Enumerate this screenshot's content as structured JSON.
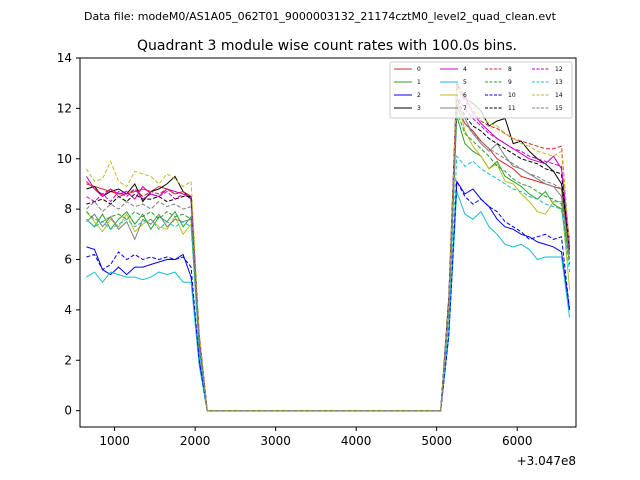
{
  "chart_data": {
    "type": "line",
    "suptitle": "Data file: modeM0/AS1A05_062T01_9000003132_21174cztM0_level2_quad_clean.evt",
    "title": "Quadrant 3 module wise count rates with 100.0s bins.",
    "xlabel": "",
    "ylabel": "",
    "offset_text": "+3.047e8",
    "xlim": [
      570,
      6730
    ],
    "ylim": [
      -0.65,
      14
    ],
    "xticks": [
      1000,
      2000,
      3000,
      4000,
      5000,
      6000
    ],
    "xtick_labels": [
      "1000",
      "2000",
      "3000",
      "4000",
      "5000",
      "6000"
    ],
    "yticks": [
      0,
      2,
      4,
      6,
      8,
      10,
      12,
      14
    ],
    "ytick_labels": [
      "0",
      "2",
      "4",
      "6",
      "8",
      "10",
      "12",
      "14"
    ],
    "legend_position": "top-right",
    "x": [
      650,
      750,
      850,
      950,
      1050,
      1150,
      1250,
      1350,
      1450,
      1550,
      1650,
      1750,
      1850,
      1950,
      2050,
      2150,
      2250,
      2350,
      2450,
      2550,
      2650,
      2750,
      2850,
      2950,
      3050,
      3150,
      3250,
      3350,
      3450,
      3550,
      3650,
      3750,
      3850,
      3950,
      4050,
      4150,
      4250,
      4350,
      4450,
      4550,
      4650,
      4750,
      4850,
      4950,
      5050,
      5150,
      5250,
      5350,
      5450,
      5550,
      5650,
      5750,
      5850,
      5950,
      6050,
      6150,
      6250,
      6350,
      6450,
      6550,
      6650
    ],
    "series": [
      {
        "name": "0",
        "color": "#d62728",
        "dash": "solid",
        "values": [
          9.0,
          8.9,
          8.8,
          8.7,
          8.6,
          8.6,
          8.7,
          8.8,
          8.7,
          8.9,
          8.8,
          8.6,
          8.7,
          8.5,
          3.0,
          0.0,
          0.0,
          0.0,
          0.0,
          0.0,
          0.0,
          0.0,
          0.0,
          0.0,
          0.0,
          0.0,
          0.0,
          0.0,
          0.0,
          0.0,
          0.0,
          0.0,
          0.0,
          0.0,
          0.0,
          0.0,
          0.0,
          0.0,
          0.0,
          0.0,
          0.0,
          0.0,
          0.0,
          0.0,
          0.0,
          4.0,
          12.1,
          11.4,
          11.1,
          10.7,
          10.4,
          10.0,
          9.8,
          9.6,
          9.3,
          9.2,
          9.1,
          9.0,
          8.9,
          8.8,
          6.2
        ]
      },
      {
        "name": "1",
        "color": "#2ca02c",
        "dash": "solid",
        "values": [
          7.6,
          7.3,
          7.8,
          7.2,
          7.6,
          7.9,
          7.4,
          7.8,
          7.2,
          7.7,
          7.5,
          7.9,
          7.3,
          7.7,
          2.5,
          0.0,
          0.0,
          0.0,
          0.0,
          0.0,
          0.0,
          0.0,
          0.0,
          0.0,
          0.0,
          0.0,
          0.0,
          0.0,
          0.0,
          0.0,
          0.0,
          0.0,
          0.0,
          0.0,
          0.0,
          0.0,
          0.0,
          0.0,
          0.0,
          0.0,
          0.0,
          0.0,
          0.0,
          0.0,
          0.0,
          4.0,
          11.7,
          10.6,
          10.3,
          10.1,
          9.6,
          9.9,
          9.3,
          9.1,
          8.9,
          8.6,
          8.4,
          8.7,
          8.2,
          8.0,
          6.0
        ]
      },
      {
        "name": "2",
        "color": "#0000ff",
        "dash": "solid",
        "values": [
          6.5,
          6.4,
          5.6,
          5.4,
          5.7,
          5.4,
          5.7,
          5.7,
          5.8,
          5.9,
          6.0,
          6.0,
          6.2,
          5.3,
          2.0,
          0.0,
          0.0,
          0.0,
          0.0,
          0.0,
          0.0,
          0.0,
          0.0,
          0.0,
          0.0,
          0.0,
          0.0,
          0.0,
          0.0,
          0.0,
          0.0,
          0.0,
          0.0,
          0.0,
          0.0,
          0.0,
          0.0,
          0.0,
          0.0,
          0.0,
          0.0,
          0.0,
          0.0,
          0.0,
          0.0,
          3.0,
          9.1,
          8.6,
          8.8,
          8.4,
          8.1,
          7.6,
          7.3,
          7.2,
          7.0,
          6.9,
          6.7,
          6.6,
          6.5,
          6.3,
          4.0
        ]
      },
      {
        "name": "3",
        "color": "#000000",
        "dash": "solid",
        "values": [
          8.8,
          8.9,
          8.5,
          8.7,
          8.8,
          8.6,
          9.0,
          8.3,
          8.7,
          8.8,
          9.0,
          9.3,
          8.7,
          8.4,
          3.0,
          0.0,
          0.0,
          0.0,
          0.0,
          0.0,
          0.0,
          0.0,
          0.0,
          0.0,
          0.0,
          0.0,
          0.0,
          0.0,
          0.0,
          0.0,
          0.0,
          0.0,
          0.0,
          0.0,
          0.0,
          0.0,
          0.0,
          0.0,
          0.0,
          0.0,
          0.0,
          0.0,
          0.0,
          0.0,
          0.0,
          4.5,
          13.0,
          12.4,
          12.2,
          11.9,
          11.3,
          11.5,
          11.6,
          10.6,
          10.7,
          10.3,
          10.0,
          9.8,
          9.5,
          9.0,
          6.5
        ]
      },
      {
        "name": "4",
        "color": "#cc00cc",
        "dash": "solid",
        "values": [
          9.3,
          8.8,
          8.5,
          8.8,
          8.6,
          8.7,
          8.4,
          8.9,
          8.6,
          8.5,
          8.8,
          8.7,
          8.6,
          8.5,
          3.0,
          0.0,
          0.0,
          0.0,
          0.0,
          0.0,
          0.0,
          0.0,
          0.0,
          0.0,
          0.0,
          0.0,
          0.0,
          0.0,
          0.0,
          0.0,
          0.0,
          0.0,
          0.0,
          0.0,
          0.0,
          0.0,
          0.0,
          0.0,
          0.0,
          0.0,
          0.0,
          0.0,
          0.0,
          0.0,
          0.0,
          4.2,
          12.9,
          12.5,
          11.8,
          11.4,
          11.1,
          10.8,
          10.6,
          10.4,
          10.2,
          10.0,
          9.9,
          9.8,
          10.1,
          9.6,
          6.7
        ]
      },
      {
        "name": "5",
        "color": "#17becf",
        "dash": "solid",
        "values": [
          5.3,
          5.5,
          5.1,
          5.5,
          5.4,
          5.3,
          5.3,
          5.2,
          5.3,
          5.5,
          5.4,
          5.5,
          5.1,
          5.1,
          1.8,
          0.0,
          0.0,
          0.0,
          0.0,
          0.0,
          0.0,
          0.0,
          0.0,
          0.0,
          0.0,
          0.0,
          0.0,
          0.0,
          0.0,
          0.0,
          0.0,
          0.0,
          0.0,
          0.0,
          0.0,
          0.0,
          0.0,
          0.0,
          0.0,
          0.0,
          0.0,
          0.0,
          0.0,
          0.0,
          0.0,
          3.0,
          8.7,
          7.8,
          7.6,
          7.9,
          7.3,
          7.0,
          6.6,
          6.5,
          6.6,
          6.4,
          6.0,
          6.1,
          6.1,
          6.1,
          3.7
        ]
      },
      {
        "name": "6",
        "color": "#bcbd22",
        "dash": "solid",
        "values": [
          7.9,
          7.5,
          7.1,
          7.6,
          7.3,
          7.8,
          7.1,
          7.4,
          7.6,
          7.3,
          7.2,
          7.7,
          7.0,
          7.4,
          2.5,
          0.0,
          0.0,
          0.0,
          0.0,
          0.0,
          0.0,
          0.0,
          0.0,
          0.0,
          0.0,
          0.0,
          0.0,
          0.0,
          0.0,
          0.0,
          0.0,
          0.0,
          0.0,
          0.0,
          0.0,
          0.0,
          0.0,
          0.0,
          0.0,
          0.0,
          0.0,
          0.0,
          0.0,
          0.0,
          0.0,
          4.0,
          12.5,
          11.1,
          10.5,
          10.1,
          9.6,
          9.8,
          9.1,
          9.0,
          8.6,
          8.3,
          7.9,
          7.8,
          8.3,
          8.3,
          4.8
        ]
      },
      {
        "name": "7",
        "color": "#7f7f7f",
        "dash": "solid",
        "values": [
          7.5,
          7.8,
          7.3,
          7.7,
          7.2,
          7.5,
          6.8,
          7.6,
          7.4,
          7.8,
          7.3,
          7.6,
          7.5,
          7.6,
          2.5,
          0.0,
          0.0,
          0.0,
          0.0,
          0.0,
          0.0,
          0.0,
          0.0,
          0.0,
          0.0,
          0.0,
          0.0,
          0.0,
          0.0,
          0.0,
          0.0,
          0.0,
          0.0,
          0.0,
          0.0,
          0.0,
          0.0,
          0.0,
          0.0,
          0.0,
          0.0,
          0.0,
          0.0,
          0.0,
          0.0,
          4.0,
          12.2,
          11.6,
          11.0,
          10.6,
          10.3,
          10.6,
          10.1,
          9.7,
          9.6,
          9.4,
          9.2,
          9.0,
          8.9,
          8.5,
          6.2
        ]
      },
      {
        "name": "8",
        "color": "#d62728",
        "dash": "dashed",
        "values": [
          9.1,
          8.8,
          8.6,
          8.8,
          8.5,
          8.6,
          8.8,
          8.5,
          8.7,
          8.6,
          8.8,
          8.6,
          8.7,
          8.5,
          3.0,
          0.0,
          0.0,
          0.0,
          0.0,
          0.0,
          0.0,
          0.0,
          0.0,
          0.0,
          0.0,
          0.0,
          0.0,
          0.0,
          0.0,
          0.0,
          0.0,
          0.0,
          0.0,
          0.0,
          0.0,
          0.0,
          0.0,
          0.0,
          0.0,
          0.0,
          0.0,
          0.0,
          0.0,
          0.0,
          0.0,
          4.2,
          12.8,
          12.3,
          11.9,
          11.5,
          11.3,
          11.2,
          11.0,
          10.8,
          10.7,
          10.6,
          10.5,
          10.4,
          10.4,
          10.5,
          6.5
        ]
      },
      {
        "name": "9",
        "color": "#2ca02c",
        "dash": "dashed",
        "values": [
          7.9,
          7.6,
          7.5,
          7.7,
          7.8,
          7.6,
          7.9,
          7.7,
          7.9,
          7.6,
          7.9,
          7.7,
          7.8,
          7.6,
          2.6,
          0.0,
          0.0,
          0.0,
          0.0,
          0.0,
          0.0,
          0.0,
          0.0,
          0.0,
          0.0,
          0.0,
          0.0,
          0.0,
          0.0,
          0.0,
          0.0,
          0.0,
          0.0,
          0.0,
          0.0,
          0.0,
          0.0,
          0.0,
          0.0,
          0.0,
          0.0,
          0.0,
          0.0,
          0.0,
          0.0,
          4.0,
          11.9,
          11.0,
          10.7,
          10.4,
          10.1,
          9.7,
          9.5,
          9.2,
          9.0,
          8.9,
          8.7,
          8.5,
          8.4,
          8.2,
          5.8
        ]
      },
      {
        "name": "10",
        "color": "#0000ff",
        "dash": "dashed",
        "values": [
          6.1,
          6.2,
          5.6,
          5.8,
          6.3,
          6.0,
          6.2,
          6.0,
          6.1,
          6.0,
          6.1,
          6.0,
          6.1,
          5.7,
          2.0,
          0.0,
          0.0,
          0.0,
          0.0,
          0.0,
          0.0,
          0.0,
          0.0,
          0.0,
          0.0,
          0.0,
          0.0,
          0.0,
          0.0,
          0.0,
          0.0,
          0.0,
          0.0,
          0.0,
          0.0,
          0.0,
          0.0,
          0.0,
          0.0,
          0.0,
          0.0,
          0.0,
          0.0,
          0.0,
          0.0,
          3.0,
          9.1,
          8.5,
          8.2,
          8.4,
          8.1,
          7.9,
          7.5,
          7.3,
          7.1,
          6.8,
          6.9,
          7.0,
          6.8,
          6.9,
          4.0
        ]
      },
      {
        "name": "11",
        "color": "#000000",
        "dash": "dashed",
        "values": [
          8.2,
          8.3,
          8.4,
          8.2,
          8.5,
          8.3,
          8.6,
          8.4,
          8.4,
          8.5,
          8.3,
          8.4,
          8.5,
          8.5,
          2.9,
          0.0,
          0.0,
          0.0,
          0.0,
          0.0,
          0.0,
          0.0,
          0.0,
          0.0,
          0.0,
          0.0,
          0.0,
          0.0,
          0.0,
          0.0,
          0.0,
          0.0,
          0.0,
          0.0,
          0.0,
          0.0,
          0.0,
          0.0,
          0.0,
          0.0,
          0.0,
          0.0,
          0.0,
          0.0,
          0.0,
          4.3,
          12.4,
          11.7,
          11.3,
          11.1,
          10.8,
          10.6,
          10.4,
          10.2,
          10.0,
          9.9,
          9.8,
          9.6,
          9.5,
          9.4,
          6.3
        ]
      },
      {
        "name": "12",
        "color": "#cc00cc",
        "dash": "dashed",
        "values": [
          8.5,
          8.3,
          8.6,
          8.3,
          8.7,
          8.5,
          8.8,
          8.4,
          8.6,
          8.5,
          8.7,
          8.4,
          8.6,
          8.4,
          2.9,
          0.0,
          0.0,
          0.0,
          0.0,
          0.0,
          0.0,
          0.0,
          0.0,
          0.0,
          0.0,
          0.0,
          0.0,
          0.0,
          0.0,
          0.0,
          0.0,
          0.0,
          0.0,
          0.0,
          0.0,
          0.0,
          0.0,
          0.0,
          0.0,
          0.0,
          0.0,
          0.0,
          0.0,
          0.0,
          0.0,
          4.2,
          12.5,
          12.0,
          11.6,
          11.3,
          11.0,
          10.8,
          10.6,
          10.4,
          10.3,
          10.1,
          10.0,
          9.9,
          9.8,
          9.7,
          6.4
        ]
      },
      {
        "name": "13",
        "color": "#17becf",
        "dash": "dashed",
        "values": [
          7.6,
          7.3,
          7.5,
          7.2,
          7.4,
          7.6,
          7.3,
          7.5,
          7.6,
          7.2,
          7.5,
          7.3,
          7.5,
          7.3,
          2.4,
          0.0,
          0.0,
          0.0,
          0.0,
          0.0,
          0.0,
          0.0,
          0.0,
          0.0,
          0.0,
          0.0,
          0.0,
          0.0,
          0.0,
          0.0,
          0.0,
          0.0,
          0.0,
          0.0,
          0.0,
          0.0,
          0.0,
          0.0,
          0.0,
          0.0,
          0.0,
          0.0,
          0.0,
          0.0,
          0.0,
          3.5,
          10.1,
          9.7,
          9.9,
          9.6,
          9.4,
          9.2,
          9.0,
          8.8,
          8.7,
          8.5,
          8.4,
          8.2,
          8.1,
          8.0,
          5.5
        ]
      },
      {
        "name": "14",
        "color": "#bcbd22",
        "dash": "dashed",
        "values": [
          9.6,
          9.1,
          9.2,
          9.9,
          9.1,
          8.9,
          9.5,
          9.4,
          9.3,
          9.0,
          9.4,
          9.2,
          8.9,
          9.1,
          3.1,
          0.0,
          0.0,
          0.0,
          0.0,
          0.0,
          0.0,
          0.0,
          0.0,
          0.0,
          0.0,
          0.0,
          0.0,
          0.0,
          0.0,
          0.0,
          0.0,
          0.0,
          0.0,
          0.0,
          0.0,
          0.0,
          0.0,
          0.0,
          0.0,
          0.0,
          0.0,
          0.0,
          0.0,
          0.0,
          0.0,
          4.3,
          12.9,
          12.5,
          12.1,
          11.7,
          11.4,
          11.3,
          11.0,
          10.8,
          10.6,
          10.5,
          10.3,
          10.2,
          10.1,
          10.3,
          6.6
        ]
      },
      {
        "name": "15",
        "color": "#7f7f7f",
        "dash": "dashed",
        "values": [
          8.0,
          8.3,
          7.9,
          8.2,
          8.0,
          8.3,
          8.1,
          8.2,
          8.0,
          8.3,
          8.1,
          8.2,
          8.0,
          8.1,
          2.8,
          0.0,
          0.0,
          0.0,
          0.0,
          0.0,
          0.0,
          0.0,
          0.0,
          0.0,
          0.0,
          0.0,
          0.0,
          0.0,
          0.0,
          0.0,
          0.0,
          0.0,
          0.0,
          0.0,
          0.0,
          0.0,
          0.0,
          0.0,
          0.0,
          0.0,
          0.0,
          0.0,
          0.0,
          0.0,
          0.0,
          4.0,
          12.0,
          11.4,
          11.0,
          10.7,
          10.4,
          10.2,
          10.0,
          9.8,
          9.6,
          9.4,
          9.3,
          9.1,
          9.0,
          8.8,
          6.0
        ]
      }
    ]
  }
}
